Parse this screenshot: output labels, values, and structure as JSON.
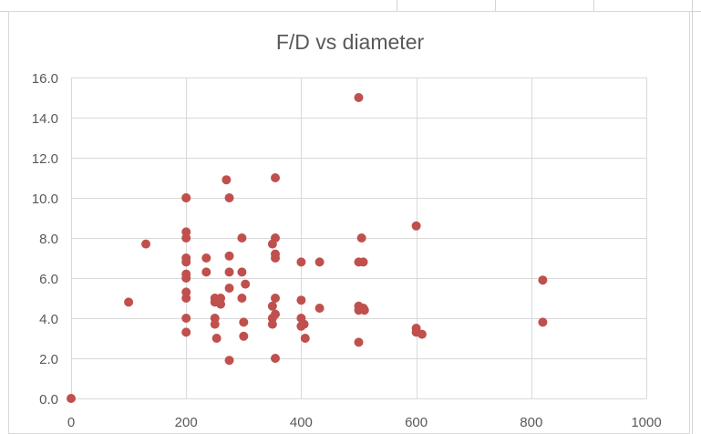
{
  "chart_data": {
    "type": "scatter",
    "title": "F/D vs diameter",
    "xlabel": "",
    "ylabel": "",
    "xlim": [
      0,
      1000
    ],
    "ylim": [
      0,
      16
    ],
    "x_ticks": [
      "0",
      "200",
      "400",
      "600",
      "800",
      "1000"
    ],
    "y_ticks": [
      "0.0",
      "2.0",
      "4.0",
      "6.0",
      "8.0",
      "10.0",
      "12.0",
      "14.0",
      "16.0"
    ],
    "grid": true,
    "legend": "none",
    "marker_color": "#c0504d",
    "points": [
      [
        0,
        0
      ],
      [
        100,
        4.8
      ],
      [
        130,
        7.7
      ],
      [
        200,
        10.0
      ],
      [
        200,
        10.0
      ],
      [
        200,
        8.3
      ],
      [
        200,
        8.0
      ],
      [
        200,
        7.0
      ],
      [
        200,
        6.8
      ],
      [
        200,
        6.2
      ],
      [
        200,
        6.0
      ],
      [
        200,
        5.3
      ],
      [
        200,
        5.0
      ],
      [
        200,
        4.0
      ],
      [
        200,
        3.3
      ],
      [
        235,
        7.0
      ],
      [
        235,
        6.3
      ],
      [
        250,
        5.0
      ],
      [
        250,
        4.8
      ],
      [
        250,
        4.0
      ],
      [
        250,
        3.7
      ],
      [
        253,
        3.0
      ],
      [
        260,
        5.0
      ],
      [
        260,
        4.7
      ],
      [
        270,
        10.9
      ],
      [
        275,
        10.0
      ],
      [
        275,
        7.1
      ],
      [
        275,
        6.3
      ],
      [
        275,
        5.5
      ],
      [
        275,
        1.9
      ],
      [
        297,
        8.0
      ],
      [
        297,
        6.3
      ],
      [
        297,
        5.0
      ],
      [
        300,
        3.8
      ],
      [
        300,
        3.1
      ],
      [
        303,
        5.7
      ],
      [
        350,
        7.7
      ],
      [
        350,
        4.6
      ],
      [
        350,
        4.0
      ],
      [
        350,
        3.7
      ],
      [
        355,
        11.0
      ],
      [
        355,
        8.0
      ],
      [
        355,
        7.2
      ],
      [
        355,
        7.0
      ],
      [
        355,
        5.0
      ],
      [
        355,
        4.2
      ],
      [
        355,
        2.0
      ],
      [
        400,
        6.8
      ],
      [
        400,
        4.9
      ],
      [
        400,
        4.0
      ],
      [
        400,
        3.6
      ],
      [
        405,
        3.7
      ],
      [
        407,
        3.0
      ],
      [
        432,
        6.8
      ],
      [
        432,
        4.5
      ],
      [
        500,
        15.0
      ],
      [
        500,
        6.8
      ],
      [
        500,
        4.6
      ],
      [
        500,
        4.4
      ],
      [
        500,
        2.8
      ],
      [
        505,
        8.0
      ],
      [
        508,
        6.8
      ],
      [
        508,
        4.5
      ],
      [
        510,
        4.4
      ],
      [
        600,
        8.6
      ],
      [
        600,
        3.5
      ],
      [
        600,
        3.3
      ],
      [
        610,
        3.2
      ],
      [
        820,
        5.9
      ],
      [
        820,
        3.8
      ]
    ]
  }
}
